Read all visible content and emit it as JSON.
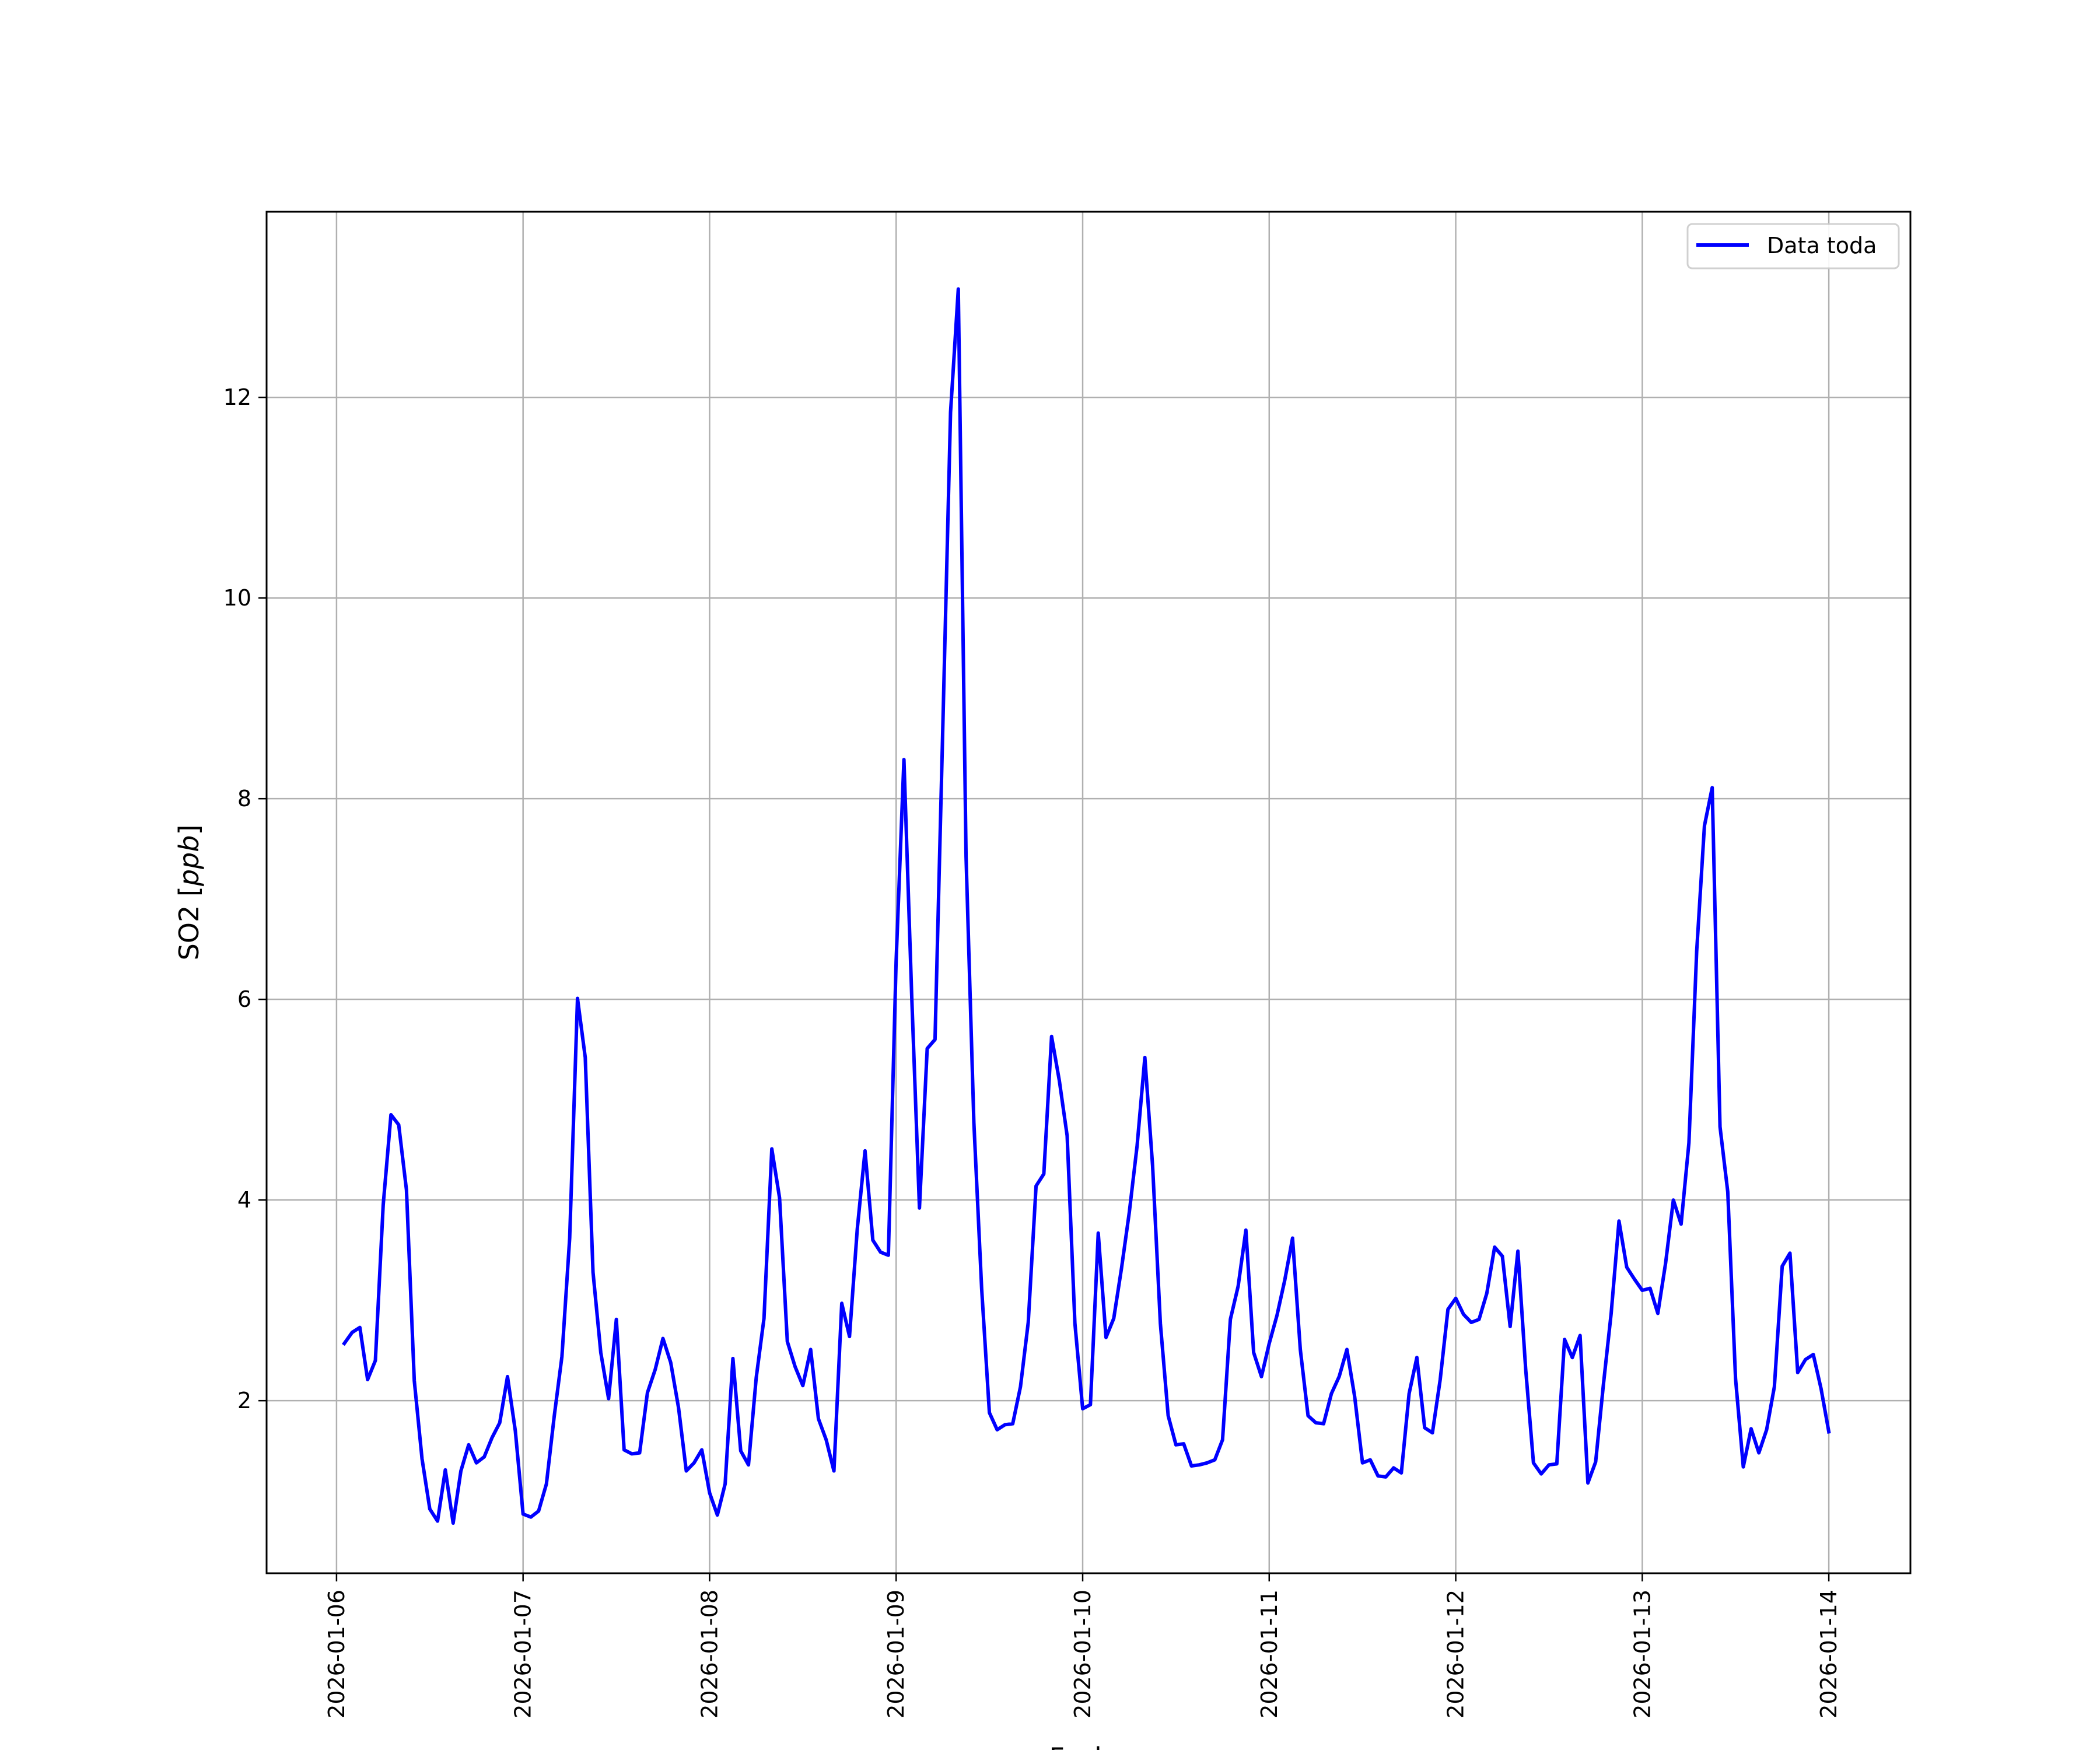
{
  "chart_data": {
    "type": "line",
    "title": "",
    "xlabel": "Fecha",
    "ylabel": "SO2 [",
    "ylabel_unit": "ppb",
    "ylabel_close": "]",
    "x_ticks": [
      "2026-01-06",
      "2026-01-07",
      "2026-01-08",
      "2026-01-09",
      "2026-01-10",
      "2026-01-11",
      "2026-01-12",
      "2026-01-13",
      "2026-01-14"
    ],
    "y_ticks": [
      2,
      4,
      6,
      8,
      10,
      12
    ],
    "xlim": [
      "2026-01-05T15:00",
      "2026-01-14T10:30"
    ],
    "ylim": [
      0.28,
      13.85
    ],
    "grid": true,
    "legend_position": "top-right",
    "series": [
      {
        "name": "Data toda",
        "color": "#0000ff",
        "start": "2026-01-06T01:00",
        "step_hours": 1,
        "values": [
          2.57,
          2.68,
          2.73,
          2.21,
          2.4,
          3.95,
          4.85,
          4.75,
          4.1,
          2.2,
          1.42,
          0.92,
          0.8,
          1.31,
          0.78,
          1.3,
          1.56,
          1.38,
          1.44,
          1.63,
          1.78,
          2.24,
          1.7,
          0.87,
          0.84,
          0.9,
          1.17,
          1.84,
          2.44,
          3.62,
          6.01,
          5.42,
          3.28,
          2.48,
          2.02,
          2.81,
          1.51,
          1.47,
          1.48,
          2.08,
          2.31,
          2.62,
          2.38,
          1.93,
          1.3,
          1.38,
          1.51,
          1.08,
          0.86,
          1.17,
          2.42,
          1.5,
          1.36,
          2.23,
          2.82,
          4.51,
          4.02,
          2.59,
          2.34,
          2.15,
          2.51,
          1.82,
          1.61,
          1.3,
          2.97,
          2.64,
          3.71,
          4.49,
          3.6,
          3.48,
          3.45,
          6.38,
          8.39,
          6.04,
          3.92,
          5.51,
          5.6,
          8.7,
          11.85,
          13.08,
          7.42,
          4.77,
          3.12,
          1.88,
          1.71,
          1.76,
          1.77,
          2.14,
          2.78,
          4.14,
          4.26,
          5.63,
          5.19,
          4.64,
          2.77,
          1.92,
          1.96,
          3.67,
          2.63,
          2.82,
          3.32,
          3.88,
          4.54,
          5.42,
          4.34,
          2.77,
          1.85,
          1.56,
          1.57,
          1.35,
          1.36,
          1.38,
          1.41,
          1.61,
          2.81,
          3.14,
          3.7,
          2.48,
          2.24,
          2.57,
          2.85,
          3.2,
          3.62,
          2.51,
          1.85,
          1.78,
          1.77,
          2.07,
          2.24,
          2.51,
          2.04,
          1.38,
          1.41,
          1.25,
          1.24,
          1.33,
          1.28,
          2.07,
          2.43,
          1.73,
          1.68,
          2.21,
          2.91,
          3.02,
          2.86,
          2.78,
          2.81,
          3.07,
          3.53,
          3.44,
          2.74,
          3.49,
          2.31,
          1.38,
          1.27,
          1.36,
          1.37,
          2.61,
          2.43,
          2.65,
          1.18,
          1.39,
          2.16,
          2.87,
          3.79,
          3.33,
          3.21,
          3.1,
          3.12,
          2.87,
          3.37,
          4.0,
          3.76,
          4.57,
          6.48,
          7.73,
          8.11,
          4.73,
          4.08,
          2.22,
          1.34,
          1.72,
          1.48,
          1.71,
          2.14,
          3.34,
          3.47,
          2.28,
          2.41,
          2.46,
          2.12,
          1.69
        ]
      }
    ]
  }
}
